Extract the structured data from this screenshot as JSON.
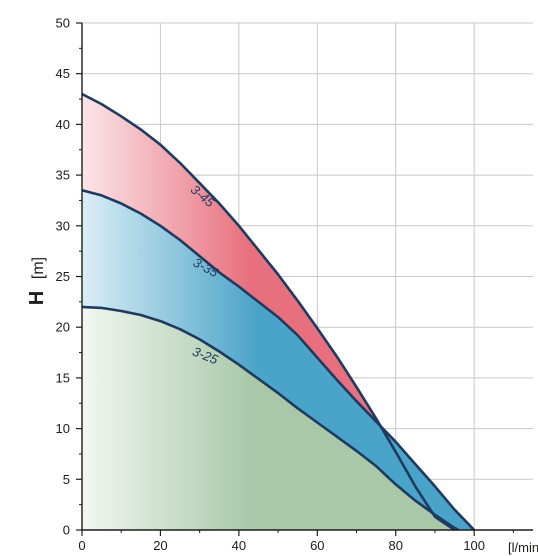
{
  "chart_data": {
    "type": "area",
    "xlabel": "[l/min]",
    "ylabel_symbol": "H",
    "ylabel_unit": "[m]",
    "xlim": [
      0,
      115
    ],
    "ylim": [
      0,
      50
    ],
    "x_ticks": [
      0,
      20,
      40,
      60,
      80,
      100
    ],
    "y_ticks": [
      0,
      5,
      10,
      15,
      20,
      25,
      30,
      35,
      40,
      45,
      50
    ],
    "grid": true,
    "series": [
      {
        "name": "3-45",
        "color": "#e8707e",
        "fill_light": "#fbe6e8",
        "line_color": "#1e3a5f",
        "points": [
          [
            0,
            43
          ],
          [
            5,
            42
          ],
          [
            10,
            40.8
          ],
          [
            15,
            39.5
          ],
          [
            20,
            38
          ],
          [
            25,
            36.2
          ],
          [
            30,
            34.2
          ],
          [
            35,
            32.2
          ],
          [
            40,
            30
          ],
          [
            45,
            27.6
          ],
          [
            50,
            25.2
          ],
          [
            55,
            22.6
          ],
          [
            60,
            19.9
          ],
          [
            65,
            17.1
          ],
          [
            70,
            14.1
          ],
          [
            75,
            11
          ],
          [
            80,
            7.7
          ],
          [
            85,
            4.3
          ],
          [
            90,
            1.3
          ],
          [
            95,
            0
          ]
        ]
      },
      {
        "name": "3-35",
        "color": "#4aa3c8",
        "fill_light": "#dbeef5",
        "line_color": "#1e3a5f",
        "points": [
          [
            0,
            33.5
          ],
          [
            5,
            33
          ],
          [
            10,
            32.2
          ],
          [
            15,
            31.2
          ],
          [
            20,
            30
          ],
          [
            25,
            28.6
          ],
          [
            30,
            27
          ],
          [
            35,
            25.4
          ],
          [
            40,
            24
          ],
          [
            45,
            22.5
          ],
          [
            50,
            21
          ],
          [
            55,
            19.2
          ],
          [
            60,
            17
          ],
          [
            65,
            14.8
          ],
          [
            70,
            12.7
          ],
          [
            75,
            10.7
          ],
          [
            80,
            8.7
          ],
          [
            85,
            6.5
          ],
          [
            90,
            4.3
          ],
          [
            95,
            2
          ],
          [
            100,
            0
          ]
        ]
      },
      {
        "name": "3-25",
        "color": "#a8c8a8",
        "fill_light": "#f2f7f2",
        "line_color": "#1e3a5f",
        "points": [
          [
            0,
            22
          ],
          [
            5,
            21.9
          ],
          [
            10,
            21.6
          ],
          [
            15,
            21.2
          ],
          [
            20,
            20.6
          ],
          [
            25,
            19.8
          ],
          [
            30,
            18.8
          ],
          [
            35,
            17.6
          ],
          [
            40,
            16.3
          ],
          [
            45,
            14.9
          ],
          [
            50,
            13.5
          ],
          [
            55,
            12
          ],
          [
            60,
            10.6
          ],
          [
            65,
            9.2
          ],
          [
            70,
            7.8
          ],
          [
            75,
            6.3
          ],
          [
            80,
            4.5
          ],
          [
            85,
            2.9
          ],
          [
            90,
            1.5
          ],
          [
            95,
            0.2
          ],
          [
            96,
            0
          ]
        ]
      }
    ]
  }
}
